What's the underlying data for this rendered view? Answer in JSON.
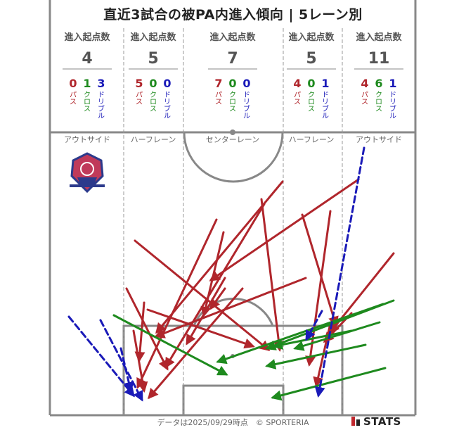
{
  "title": "直近3試合の被PA内進入傾向 | 5レーン別",
  "colors": {
    "pass": "#b0262c",
    "cross": "#1e8a1e",
    "dribble": "#1a1ab8",
    "pitch_line": "#888888",
    "text_gray": "#555555"
  },
  "labels": {
    "entries": "進入起点数",
    "pass": "パス",
    "cross": "クロス",
    "dribble": "ドリブル"
  },
  "chart_data": {
    "type": "flow-map",
    "lanes": [
      {
        "name": "アウトサイド",
        "total": 4,
        "pass": 0,
        "cross": 1,
        "dribble": 3
      },
      {
        "name": "ハーフレーン",
        "total": 5,
        "pass": 5,
        "cross": 0,
        "dribble": 0
      },
      {
        "name": "センターレーン",
        "total": 7,
        "pass": 7,
        "cross": 0,
        "dribble": 0
      },
      {
        "name": "ハーフレーン",
        "total": 5,
        "pass": 4,
        "cross": 0,
        "dribble": 1
      },
      {
        "name": "アウトサイド",
        "total": 11,
        "pass": 4,
        "cross": 6,
        "dribble": 1
      }
    ]
  },
  "team_logo": "club-crest-icon",
  "footer": {
    "note": "データは2025/09/29時点　© SPORTERIA",
    "brand": "STATS"
  }
}
